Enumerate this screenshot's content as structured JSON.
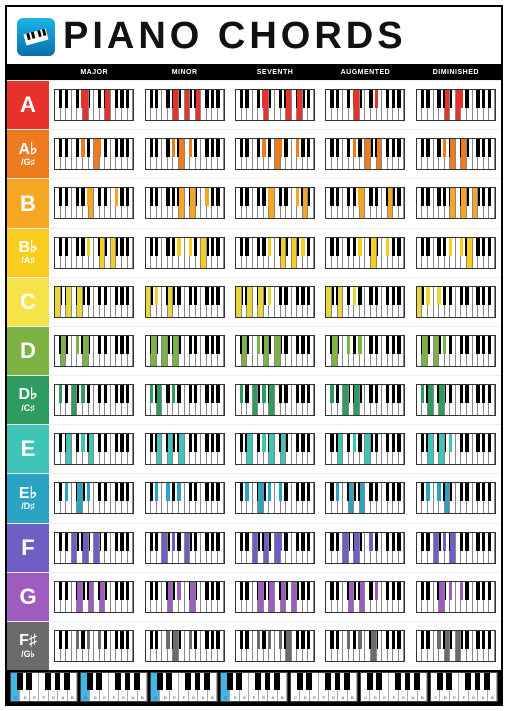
{
  "title": "PIANO CHORDS",
  "logo": {
    "bg_top": "#1db4e8",
    "bg_bottom": "#0a6fa8",
    "icon": "piano"
  },
  "columns": [
    "MAJOR",
    "MINOR",
    "SEVENTH",
    "AUGMENTED",
    "DIMINISHED"
  ],
  "row_labels": [
    {
      "text": "A",
      "sub": null,
      "bg": "#e6322b"
    },
    {
      "text": "A♭",
      "sub": "G♯",
      "bg": "#ef7b1f",
      "small": true
    },
    {
      "text": "B",
      "sub": null,
      "bg": "#f5a623"
    },
    {
      "text": "B♭",
      "sub": "A♯",
      "bg": "#f9cd1e",
      "small": true
    },
    {
      "text": "C",
      "sub": null,
      "bg": "#f6e34a"
    },
    {
      "text": "D",
      "sub": null,
      "bg": "#7cb342"
    },
    {
      "text": "D♭",
      "sub": "C♯",
      "bg": "#2e9b5f",
      "small": true
    },
    {
      "text": "E",
      "sub": null,
      "bg": "#3fc5b8"
    },
    {
      "text": "E♭",
      "sub": "D♯",
      "bg": "#2aa3c2",
      "small": true
    },
    {
      "text": "F",
      "sub": null,
      "bg": "#6f5fc5"
    },
    {
      "text": "G",
      "sub": null,
      "bg": "#9e5cc0"
    },
    {
      "text": "F♯",
      "sub": "G♭",
      "bg": "#6b6b6b",
      "small": true
    }
  ],
  "keyboard": {
    "white_count": 14,
    "white_width_pct": 7.1428,
    "black_positions_pct": [
      5.0,
      12.14,
      26.43,
      33.57,
      40.71,
      55.0,
      62.14,
      76.43,
      83.57,
      90.71
    ],
    "black_width_pct": 4.3
  },
  "highlight_colors": {
    "A": "#e6322b",
    "Ab": "#ef7b1f",
    "B": "#f5a623",
    "Bb": "#f9cd1e",
    "C": "#e8d738",
    "D": "#7cb342",
    "Db": "#2e9b5f",
    "E": "#3fc5b8",
    "Eb": "#2aa3c2",
    "F": "#6f5fc5",
    "G": "#9e5cc0",
    "Fs": "#6b6b6b"
  },
  "chords": {
    "A": {
      "MAJOR": [
        "w5",
        "b3",
        "w9"
      ],
      "MINOR": [
        "w5",
        "w7",
        "w9"
      ],
      "SEVENTH": [
        "w5",
        "b3",
        "w9",
        "w11"
      ],
      "AUGMENTED": [
        "w5",
        "b3",
        "b6"
      ],
      "DIMINISHED": [
        "w5",
        "w7",
        "b5"
      ]
    },
    "Ab": {
      "MAJOR": [
        "b3",
        "w7",
        "b5"
      ],
      "MINOR": [
        "b3",
        "w6",
        "b5"
      ],
      "SEVENTH": [
        "b3",
        "w7",
        "b5",
        "b7"
      ],
      "AUGMENTED": [
        "b3",
        "w7",
        "w9"
      ],
      "DIMINISHED": [
        "b3",
        "w6",
        "w8"
      ]
    },
    "B": {
      "MAJOR": [
        "w6",
        "b4",
        "b7"
      ],
      "MINOR": [
        "w6",
        "w8",
        "b7"
      ],
      "SEVENTH": [
        "w6",
        "b4",
        "b7",
        "w12"
      ],
      "AUGMENTED": [
        "w6",
        "b4",
        "w11"
      ],
      "DIMINISHED": [
        "w6",
        "w8",
        "w10"
      ]
    },
    "Bb": {
      "MAJOR": [
        "b4",
        "w8",
        "w10"
      ],
      "MINOR": [
        "b4",
        "b5",
        "w10"
      ],
      "SEVENTH": [
        "b4",
        "w8",
        "w10",
        "b8"
      ],
      "AUGMENTED": [
        "b4",
        "w8",
        "b7"
      ],
      "DIMINISHED": [
        "b4",
        "b5",
        "w9"
      ]
    },
    "C": {
      "MAJOR": [
        "w0",
        "w2",
        "w4"
      ],
      "MINOR": [
        "w0",
        "b1",
        "w4"
      ],
      "SEVENTH": [
        "w0",
        "w2",
        "w4",
        "b4"
      ],
      "AUGMENTED": [
        "w0",
        "w2",
        "b3"
      ],
      "DIMINISHED": [
        "w0",
        "b1",
        "b2"
      ]
    },
    "D": {
      "MAJOR": [
        "w1",
        "b2",
        "w5"
      ],
      "MINOR": [
        "w1",
        "w3",
        "w5"
      ],
      "SEVENTH": [
        "w1",
        "b2",
        "w5",
        "w7"
      ],
      "AUGMENTED": [
        "w1",
        "b2",
        "b4"
      ],
      "DIMINISHED": [
        "w1",
        "w3",
        "b3"
      ]
    },
    "Db": {
      "MAJOR": [
        "b0",
        "w3",
        "b3"
      ],
      "MINOR": [
        "b0",
        "w2",
        "b3"
      ],
      "SEVENTH": [
        "b0",
        "w3",
        "b3",
        "w6"
      ],
      "AUGMENTED": [
        "b0",
        "w3",
        "w5"
      ],
      "DIMINISHED": [
        "b0",
        "w2",
        "w4"
      ]
    },
    "E": {
      "MAJOR": [
        "w2",
        "b3",
        "w6"
      ],
      "MINOR": [
        "w2",
        "w4",
        "w6"
      ],
      "SEVENTH": [
        "w2",
        "b3",
        "w6",
        "w8"
      ],
      "AUGMENTED": [
        "w2",
        "b3",
        "w7"
      ],
      "DIMINISHED": [
        "w2",
        "w4",
        "b4"
      ]
    },
    "Eb": {
      "MAJOR": [
        "b1",
        "w4",
        "b4"
      ],
      "MINOR": [
        "b1",
        "b2",
        "b4"
      ],
      "SEVENTH": [
        "b1",
        "w4",
        "b4",
        "b5"
      ],
      "AUGMENTED": [
        "b1",
        "w4",
        "w6"
      ],
      "DIMINISHED": [
        "b1",
        "b2",
        "w5"
      ]
    },
    "F": {
      "MAJOR": [
        "w3",
        "w5",
        "w7"
      ],
      "MINOR": [
        "w3",
        "b3",
        "w7"
      ],
      "SEVENTH": [
        "w3",
        "w5",
        "w7",
        "b5"
      ],
      "AUGMENTED": [
        "w3",
        "w5",
        "b5"
      ],
      "DIMINISHED": [
        "w3",
        "b3",
        "w6"
      ]
    },
    "G": {
      "MAJOR": [
        "w4",
        "w6",
        "w8"
      ],
      "MINOR": [
        "w4",
        "b4",
        "w8"
      ],
      "SEVENTH": [
        "w4",
        "w6",
        "w8",
        "w10"
      ],
      "AUGMENTED": [
        "w4",
        "w6",
        "b6"
      ],
      "DIMINISHED": [
        "w4",
        "b4",
        "b5"
      ]
    },
    "Fs": {
      "MAJOR": [
        "b2",
        "b4",
        "b5"
      ],
      "MINOR": [
        "b2",
        "w5",
        "b5"
      ],
      "SEVENTH": [
        "b2",
        "b4",
        "b5",
        "w9"
      ],
      "AUGMENTED": [
        "b2",
        "b4",
        "w8"
      ],
      "DIMINISHED": [
        "b2",
        "w5",
        "w7"
      ]
    }
  },
  "row_keys": [
    "A",
    "Ab",
    "B",
    "Bb",
    "C",
    "D",
    "Db",
    "E",
    "Eb",
    "F",
    "G",
    "Fs"
  ],
  "footer": {
    "octave_count": 7,
    "highlight_c_octaves": [
      0,
      1,
      2,
      3
    ],
    "highlight_color": "#3fb8e8",
    "note_labels": [
      "C",
      "D",
      "E",
      "F",
      "G",
      "A",
      "B"
    ]
  },
  "background_color": "#ffffff",
  "border_color": "#000000"
}
